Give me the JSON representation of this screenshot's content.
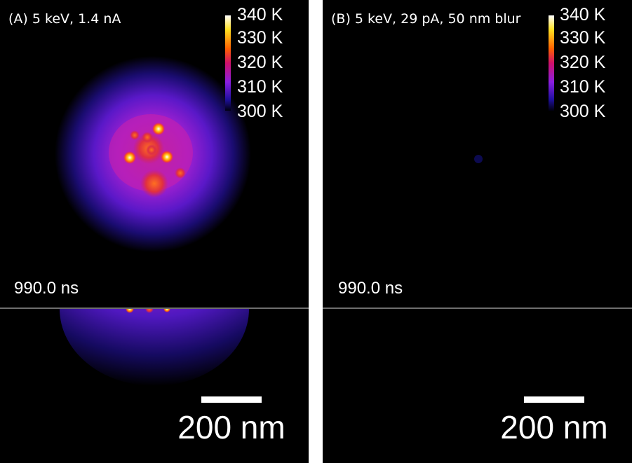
{
  "panels": [
    {
      "label": "(A) 5 keV, 1.4 nA",
      "colorbar": [
        "340 K",
        "330 K",
        "320 K",
        "310 K",
        "300 K"
      ],
      "time": "990.0 ns",
      "scale_bar": "200 nm"
    },
    {
      "label": "(B) 5 keV, 29 pA, 50 nm blur",
      "colorbar": [
        "340 K",
        "330 K",
        "320 K",
        "310 K",
        "300 K"
      ],
      "time": "990.0 ns",
      "scale_bar": "200 nm"
    }
  ]
}
